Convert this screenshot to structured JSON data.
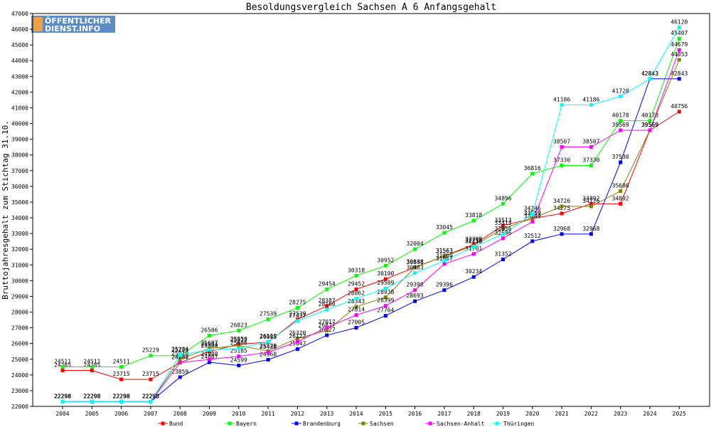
{
  "chart_data": {
    "type": "line",
    "title": "Besoldungsvergleich Sachsen A 6 Anfangsgehalt",
    "ylabel": "Bruttojahresgehalt zum Stichtag 31.10.",
    "xlabel": "",
    "ylim": [
      22000,
      47000
    ],
    "y_ticks": [
      22000,
      23000,
      24000,
      25000,
      26000,
      27000,
      28000,
      29000,
      30000,
      31000,
      32000,
      33000,
      34000,
      35000,
      36000,
      37000,
      38000,
      39000,
      40000,
      41000,
      42000,
      43000,
      44000,
      45000,
      46000,
      47000
    ],
    "categories": [
      "2004",
      "2005",
      "2006",
      "2007",
      "2008",
      "2009",
      "2010",
      "2011",
      "2012",
      "2013",
      "2014",
      "2015",
      "2016",
      "2017",
      "2018",
      "2019",
      "2020",
      "2021",
      "2022",
      "2023",
      "2024",
      "2025"
    ],
    "grid": false,
    "legend_position": "bottom",
    "logo_text": [
      "ÖFFENTLICHER",
      "DIENST.INFO"
    ],
    "series": [
      {
        "name": "Bund",
        "color": "#ff0000",
        "values": [
          24285,
          24285,
          23715,
          23715,
          24780,
          25500,
          25950,
          26085,
          27539,
          28387,
          29452,
          30100,
          30848,
          31563,
          32309,
          33513,
          33959,
          34275,
          34892,
          34892,
          39569,
          40756
        ]
      },
      {
        "name": "Bayern",
        "color": "#00ff00",
        "values": [
          24511,
          24511,
          24511,
          25229,
          25229,
          26506,
          26823,
          27539,
          28275,
          29454,
          30318,
          30952,
          32004,
          33045,
          33818,
          34896,
          36816,
          37330,
          37330,
          40178,
          40178,
          45407
        ]
      },
      {
        "name": "Brandenburg",
        "color": "#0000ff",
        "values": [
          22298,
          22298,
          22298,
          22298,
          23859,
          24807,
          24599,
          24968,
          25647,
          26527,
          27005,
          27764,
          28693,
          29396,
          30234,
          31352,
          32512,
          32968,
          32968,
          37530,
          42843,
          42843
        ]
      },
      {
        "name": "Sachsen",
        "color": "#808000",
        "values": [
          22298,
          22298,
          22298,
          22298,
          25010,
          25687,
          25872,
          25520,
          26320,
          26827,
          28343,
          28938,
          30838,
          31563,
          32219,
          33313,
          33959,
          34726,
          34726,
          35698,
          39569,
          44053
        ]
      },
      {
        "name": "Sachsen-Anhalt",
        "color": "#ff00ff",
        "values": [
          22298,
          22298,
          22298,
          22298,
          24787,
          24988,
          25185,
          25438,
          26122,
          27017,
          27814,
          28399,
          29398,
          31067,
          31701,
          32696,
          33749,
          38507,
          38507,
          39569,
          39569,
          44679
        ]
      },
      {
        "name": "Thüringen",
        "color": "#00ffff",
        "values": [
          22298,
          22298,
          22298,
          22298,
          25284,
          25591,
          25686,
          26119,
          27437,
          28160,
          28862,
          29509,
          30483,
          31269,
          32158,
          32956,
          34246,
          41186,
          41186,
          41728,
          42843,
          46120
        ]
      }
    ]
  }
}
